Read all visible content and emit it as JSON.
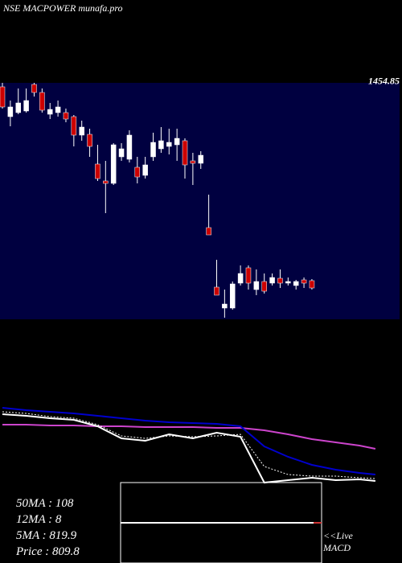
{
  "chart_data": [
    {
      "type": "candlestick",
      "title": "NSE MACPOWER munafa.pro",
      "price_label": 1454.85,
      "up_color": "#ffffff",
      "down_color": "#cc0000",
      "background": "#000040",
      "ylim": [
        800,
        1460
      ],
      "open": [
        1448.8,
        1365.7,
        1376.9,
        1381.4,
        1455.5,
        1433.1,
        1372.4,
        1376.9,
        1376.9,
        1365.7,
        1314.1,
        1316.3,
        1233.3,
        1186.1,
        1179.4,
        1253.5,
        1246.7,
        1224.3,
        1201.8,
        1253.5,
        1275.9,
        1282.6,
        1287.1,
        1298.4,
        1242.2,
        1235.5,
        1055.9,
        889.8,
        831.4,
        831.4,
        901.0,
        943.7,
        883.0,
        905.5,
        901.0,
        914.5,
        901.0,
        894.3,
        910.0,
        907.8
      ],
      "high": [
        1460,
        1410.6,
        1444.3,
        1444.3,
        1460,
        1444.3,
        1403.9,
        1410.6,
        1388.2,
        1370.2,
        1354.5,
        1332.0,
        1287.1,
        1242.2,
        1291.6,
        1291.6,
        1327.5,
        1253.5,
        1253.5,
        1320.8,
        1336.5,
        1332.0,
        1332.0,
        1305.1,
        1264.7,
        1269.2,
        1147.9,
        966.1,
        883.0,
        905.5,
        950.4,
        950.4,
        939.2,
        927.9,
        927.9,
        939.2,
        916.7,
        910.0,
        916.7,
        912.2
      ],
      "low": [
        1388.2,
        1338.8,
        1372.4,
        1376.9,
        1421.8,
        1376.9,
        1359.0,
        1365.7,
        1350.0,
        1282.6,
        1298.4,
        1253.5,
        1186.1,
        1096.3,
        1174.9,
        1242.2,
        1237.7,
        1179.4,
        1192.8,
        1242.2,
        1264.7,
        1260.2,
        1242.2,
        1192.8,
        1174.9,
        1219.8,
        1035.7,
        867.4,
        804.5,
        826.9,
        894.3,
        883.0,
        867.4,
        871.8,
        894.3,
        887.5,
        894.3,
        883.0,
        887.5,
        883.0
      ],
      "close": [
        1392.7,
        1392.7,
        1403.9,
        1410.6,
        1433.1,
        1383.7,
        1385.9,
        1392.7,
        1359.0,
        1314.1,
        1336.5,
        1282.6,
        1192.8,
        1179.4,
        1287.1,
        1275.9,
        1314.1,
        1197.3,
        1231.0,
        1293.9,
        1298.4,
        1293.9,
        1305.1,
        1231.0,
        1235.5,
        1257.9,
        1035.7,
        867.4,
        842.6,
        898.8,
        927.9,
        901.0,
        905.5,
        878.5,
        916.7,
        901.0,
        905.5,
        905.5,
        901.0,
        887.5
      ]
    },
    {
      "type": "line",
      "ylim": [
        0,
        100
      ],
      "x": [
        0,
        3,
        6,
        9,
        12,
        15,
        18,
        21,
        24,
        27,
        30,
        33,
        36,
        39,
        42,
        45,
        47
      ],
      "series": [
        {
          "color": "#cc44cc",
          "style": "solid",
          "values": [
            72,
            72,
            71,
            71,
            70,
            70,
            69,
            69,
            69,
            68,
            68,
            65,
            60,
            54,
            50,
            46,
            42
          ]
        },
        {
          "color": "#0000cc",
          "style": "solid",
          "values": [
            93,
            90,
            88,
            86,
            83,
            80,
            77,
            75,
            74,
            73,
            70,
            45,
            32,
            22,
            16,
            12,
            10
          ]
        },
        {
          "color": "#ffffff",
          "style": "dotted",
          "values": [
            88,
            86,
            82,
            80,
            72,
            58,
            55,
            58,
            57,
            58,
            60,
            20,
            10,
            8,
            8,
            6,
            5
          ]
        },
        {
          "color": "#ffffff",
          "style": "solid",
          "values": [
            85,
            83,
            80,
            78,
            70,
            55,
            52,
            60,
            55,
            62,
            57,
            0,
            3,
            6,
            3,
            4,
            2
          ]
        }
      ],
      "labels": [
        "50MA : 108",
        "12MA : 8",
        "5MA : 819.9",
        "Price  : 809.8"
      ]
    },
    {
      "type": "macd",
      "labels": [
        "<<Live",
        "MACD"
      ]
    }
  ]
}
